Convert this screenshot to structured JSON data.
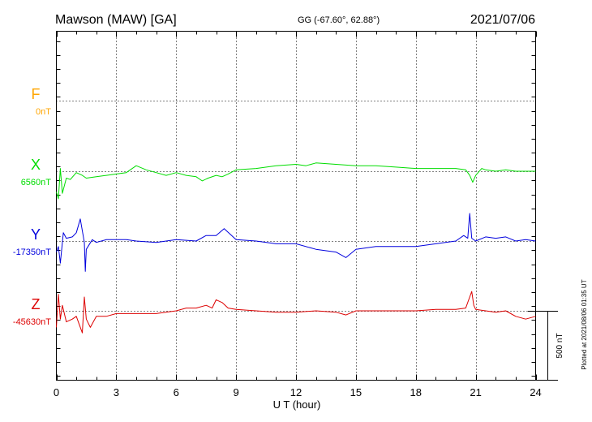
{
  "header": {
    "station": "Mawson (MAW)  [GA]",
    "coords": "GG (-67.60°,  62.88°)",
    "date": "2021/07/06"
  },
  "plotted_note": "Plotted at 2021/08/06 01:35 UT",
  "scale_label": "500 nT",
  "colors": {
    "F": "#ffa500",
    "X": "#00dd00",
    "Y": "#0000dd",
    "Z": "#dd0000",
    "axis": "#000000"
  },
  "chart_data": {
    "type": "line",
    "xlabel": "U T (hour)",
    "xlim": [
      0,
      24
    ],
    "xticks": [
      "0",
      "3",
      "6",
      "9",
      "12",
      "15",
      "18",
      "21",
      "24"
    ],
    "scale_bar_nT": 500,
    "series": [
      {
        "name": "F",
        "baseline_label": "0nT",
        "values": []
      },
      {
        "name": "X",
        "baseline_label": "6560nT",
        "x": [
          0,
          0.1,
          0.2,
          0.3,
          0.5,
          0.7,
          1.0,
          1.3,
          1.5,
          2.0,
          2.5,
          3.0,
          3.5,
          4.0,
          4.5,
          5.0,
          5.5,
          6.0,
          6.5,
          7.0,
          7.3,
          7.6,
          8.0,
          8.3,
          8.6,
          9.0,
          10.0,
          11.0,
          12.0,
          12.5,
          13.0,
          14.0,
          15.0,
          16.0,
          17.0,
          18.0,
          19.0,
          20.0,
          20.5,
          20.7,
          20.85,
          21.0,
          21.3,
          21.5,
          22.0,
          22.5,
          23.0,
          23.5,
          24.0
        ],
        "values": [
          -150,
          -200,
          20,
          -160,
          -50,
          -60,
          -10,
          -30,
          -50,
          -40,
          -30,
          -20,
          -10,
          40,
          10,
          -10,
          -30,
          -10,
          -30,
          -40,
          -70,
          -50,
          -30,
          -40,
          -20,
          10,
          20,
          40,
          50,
          40,
          60,
          50,
          40,
          40,
          30,
          20,
          20,
          20,
          10,
          -30,
          -80,
          -30,
          20,
          10,
          0,
          10,
          0,
          0,
          0
        ]
      },
      {
        "name": "Y",
        "baseline_label": "-17350nT",
        "x": [
          0,
          0.1,
          0.2,
          0.35,
          0.5,
          0.8,
          1.0,
          1.2,
          1.4,
          1.45,
          1.5,
          1.8,
          2.0,
          2.5,
          3.0,
          3.5,
          4.0,
          5.0,
          6.0,
          7.0,
          7.5,
          8.0,
          8.4,
          9.0,
          10.0,
          11.0,
          12.0,
          13.0,
          14.0,
          14.5,
          15.0,
          16.0,
          17.0,
          18.0,
          19.0,
          20.0,
          20.4,
          20.6,
          20.7,
          20.8,
          21.0,
          21.5,
          22.0,
          22.5,
          23.0,
          23.5,
          24.0
        ],
        "values": [
          -80,
          -40,
          -160,
          60,
          20,
          30,
          60,
          160,
          -10,
          -220,
          -60,
          10,
          -10,
          10,
          10,
          10,
          0,
          -10,
          10,
          0,
          40,
          40,
          90,
          10,
          0,
          -20,
          -20,
          -60,
          -80,
          -120,
          -60,
          -40,
          -40,
          -40,
          -20,
          0,
          40,
          20,
          200,
          20,
          0,
          30,
          20,
          30,
          0,
          10,
          0
        ]
      },
      {
        "name": "Z",
        "baseline_label": "-45630nT",
        "x": [
          0,
          0.1,
          0.2,
          0.3,
          0.5,
          0.8,
          1.0,
          1.3,
          1.4,
          1.5,
          1.7,
          2.0,
          2.5,
          3.0,
          3.5,
          4.0,
          5.0,
          6.0,
          6.5,
          7.0,
          7.5,
          7.8,
          8.0,
          8.3,
          8.6,
          9.0,
          10.0,
          11.0,
          12.0,
          13.0,
          14.0,
          14.5,
          15.0,
          16.0,
          17.0,
          18.0,
          19.0,
          20.0,
          20.5,
          20.7,
          20.8,
          20.9,
          21.0,
          21.5,
          22.0,
          22.5,
          23.0,
          23.5,
          24.0
        ],
        "values": [
          -120,
          120,
          -60,
          40,
          -80,
          -60,
          -40,
          -160,
          100,
          -60,
          -120,
          -40,
          -40,
          -20,
          -20,
          -20,
          -20,
          0,
          20,
          20,
          40,
          20,
          80,
          60,
          20,
          10,
          0,
          -10,
          -10,
          0,
          -10,
          -30,
          0,
          0,
          0,
          0,
          10,
          10,
          20,
          100,
          140,
          40,
          10,
          0,
          -10,
          0,
          -40,
          -60,
          -40
        ]
      }
    ]
  }
}
